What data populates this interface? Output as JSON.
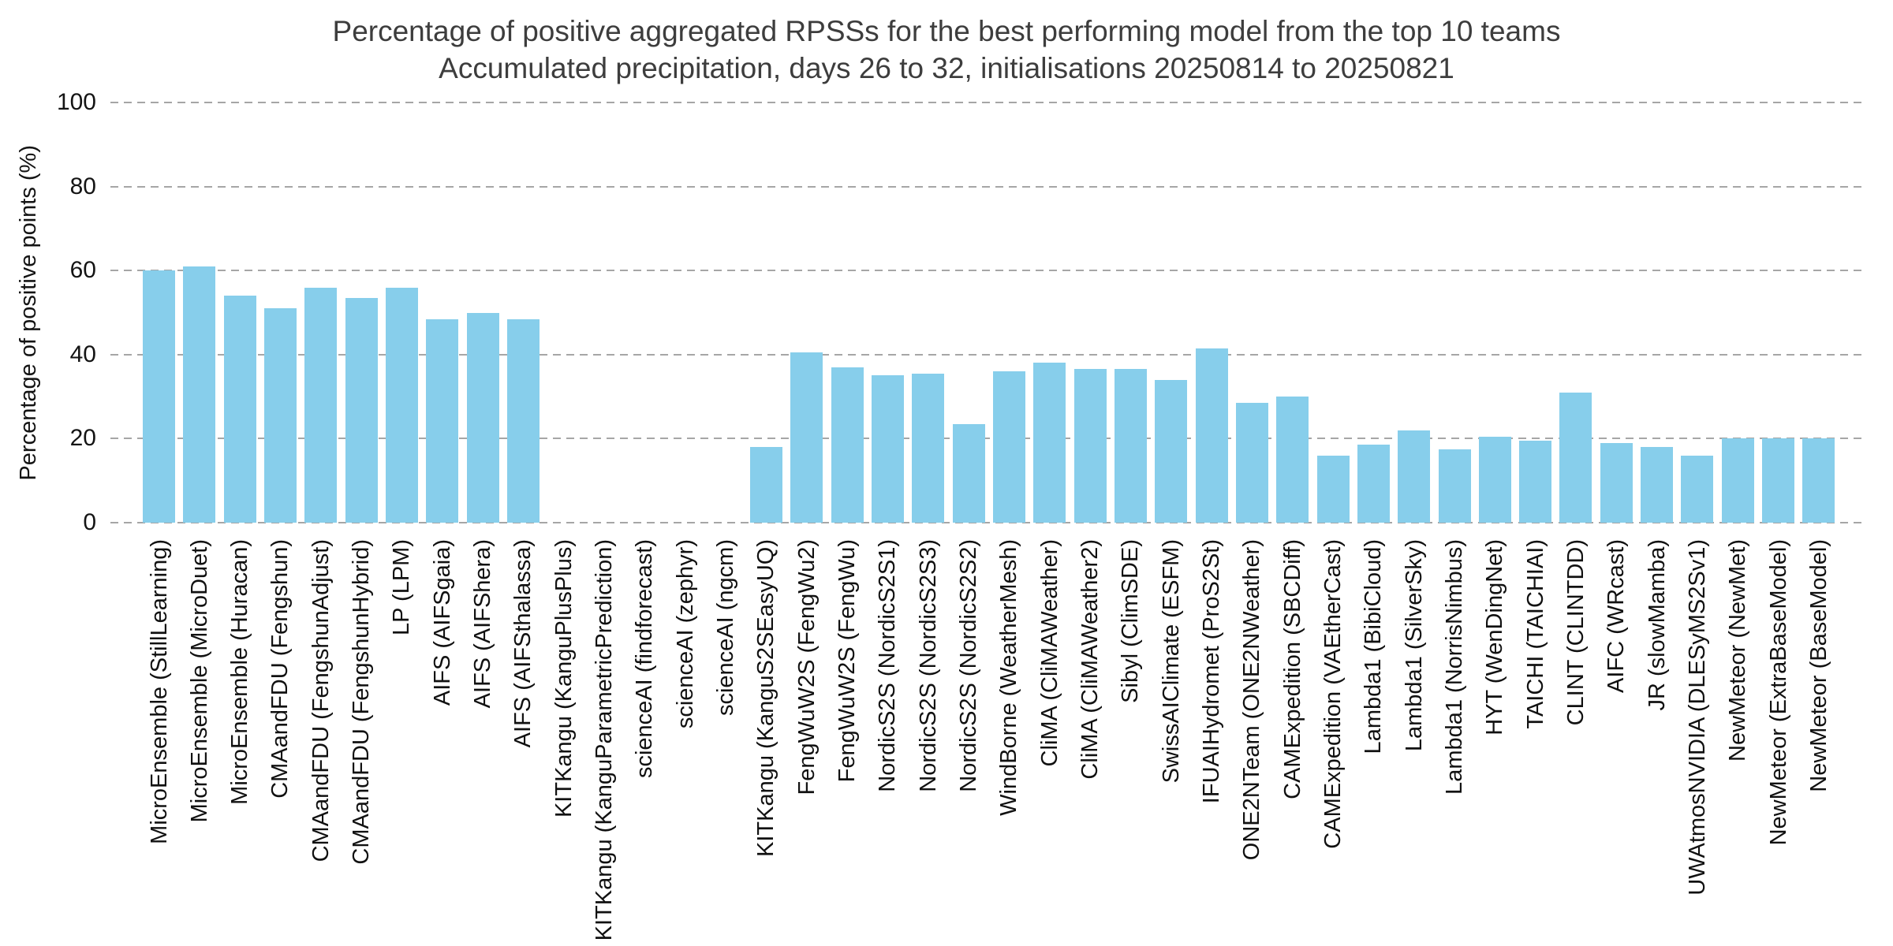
{
  "chart_data": {
    "type": "bar",
    "title": "Percentage of positive aggregated RPSSs for the best performing model from the top 10 teams",
    "subtitle": "Accumulated precipitation, days 26 to 32, initialisations 20250814 to 20250821",
    "xlabel": "",
    "ylabel": "Percentage of positive points (%)",
    "ylim": [
      0,
      100
    ],
    "yticks": [
      0,
      20,
      40,
      60,
      80,
      100
    ],
    "grid": "horizontal-dashed",
    "legend_position": "none",
    "bar_color": "#87ceeb",
    "categories": [
      "MicroEnsemble (StillLearning)",
      "MicroEnsemble (MicroDuet)",
      "MicroEnsemble (Huracan)",
      "CMAandFDU (Fengshun)",
      "CMAandFDU (FengshunAdjust)",
      "CMAandFDU (FengshunHybrid)",
      "LP (LPM)",
      "AIFS (AIFSgaia)",
      "AIFS (AIFShera)",
      "AIFS (AIFSthalassa)",
      "KITKangu (KanguPlusPlus)",
      "KITKangu (KanguParametricPrediction)",
      "scienceAI (findforecast)",
      "scienceAI (zephyr)",
      "scienceAI (ngcm)",
      "KITKangu (KanguS2SEasyUQ)",
      "FengWuW2S (FengWu2)",
      "FengWuW2S (FengWu)",
      "NordicS2S (NordicS2S1)",
      "NordicS2S (NordicS2S3)",
      "NordicS2S (NordicS2S2)",
      "WindBorne (WeatherMesh)",
      "CliMA (CliMAWeather)",
      "CliMA (CliMAWeather2)",
      "Sibyl (ClimSDE)",
      "SwissAIClimate (ESFM)",
      "IFUAIHydromet (ProS2St)",
      "ONE2NTeam (ONE2NWeather)",
      "CAMExpedition (SBCDiff)",
      "CAMExpedition (VAEtherCast)",
      "Lambda1 (BibiCloud)",
      "Lambda1 (SilverSky)",
      "Lambda1 (NorrisNimbus)",
      "HYT (WenDingNet)",
      "TAICHI (TAICHIAI)",
      "CLINT (CLINTDD)",
      "AIFC (WRcast)",
      "JR (slowMamba)",
      "UWAtmosNVIDIA (DLESyMS2Sv1)",
      "NewMeteor (NewMet)",
      "NewMeteor (ExtraBaseModel)",
      "NewMeteor (BaseModel)"
    ],
    "values": [
      60,
      61,
      54,
      51,
      56,
      53.5,
      56,
      48.5,
      50,
      48.5,
      0,
      0,
      0,
      0,
      0,
      18,
      40.5,
      37,
      35,
      35.5,
      23.5,
      36,
      38,
      36.5,
      36.5,
      34,
      41.5,
      28.5,
      30,
      16,
      18.5,
      22,
      17.5,
      20.5,
      19.5,
      31,
      19,
      18,
      16,
      20,
      20,
      20
    ]
  },
  "colors": {
    "bar": "#87ceeb",
    "grid": "#a6a6a6",
    "title_text": "#3d3d3d",
    "tick_text": "#141414",
    "background": "#ffffff"
  }
}
